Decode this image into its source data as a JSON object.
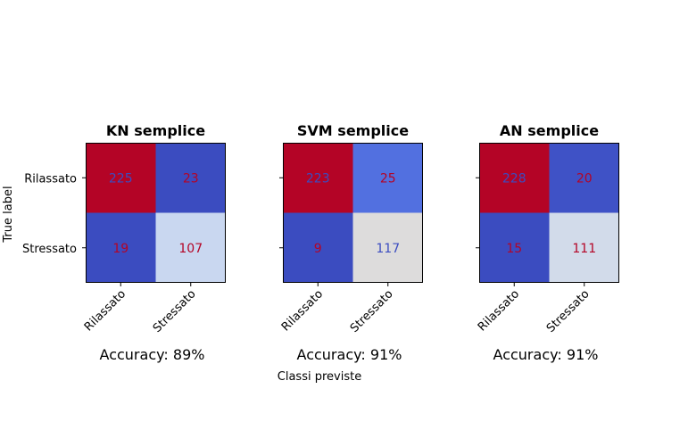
{
  "figure": {
    "ylabel": "True label",
    "xlabel": "Classi previste"
  },
  "chart_data": [
    {
      "type": "heatmap",
      "title": "KN semplice",
      "x_categories": [
        "Rilassato",
        "Stressato"
      ],
      "y_categories": [
        "Rilassato",
        "Stressato"
      ],
      "matrix": [
        [
          225,
          23
        ],
        [
          19,
          107
        ]
      ],
      "cell_colors": [
        [
          "#b40426",
          "#3b4cc0"
        ],
        [
          "#3b4cc0",
          "#c9d7f0"
        ]
      ],
      "text_colors": [
        [
          "#3b4cc0",
          "#b40426"
        ],
        [
          "#b40426",
          "#b40426"
        ]
      ],
      "caption": "Accuracy: 89%",
      "show_yticks": true
    },
    {
      "type": "heatmap",
      "title": "SVM semplice",
      "x_categories": [
        "Rilassato",
        "Stressato"
      ],
      "y_categories": [
        "Rilassato",
        "Stressato"
      ],
      "matrix": [
        [
          223,
          25
        ],
        [
          9,
          117
        ]
      ],
      "cell_colors": [
        [
          "#b40426",
          "#5270e0"
        ],
        [
          "#3b4cc0",
          "#dddcdc"
        ]
      ],
      "text_colors": [
        [
          "#3b4cc0",
          "#b40426"
        ],
        [
          "#b40426",
          "#3b4cc0"
        ]
      ],
      "caption": "Accuracy: 91%",
      "show_yticks": false
    },
    {
      "type": "heatmap",
      "title": "AN semplice",
      "x_categories": [
        "Rilassato",
        "Stressato"
      ],
      "y_categories": [
        "Rilassato",
        "Stressato"
      ],
      "matrix": [
        [
          228,
          20
        ],
        [
          15,
          111
        ]
      ],
      "cell_colors": [
        [
          "#b40426",
          "#3f52c6"
        ],
        [
          "#3b4cc0",
          "#d2dbea"
        ]
      ],
      "text_colors": [
        [
          "#3b4cc0",
          "#b40426"
        ],
        [
          "#b40426",
          "#b40426"
        ]
      ],
      "caption": "Accuracy: 91%",
      "show_yticks": false
    }
  ]
}
